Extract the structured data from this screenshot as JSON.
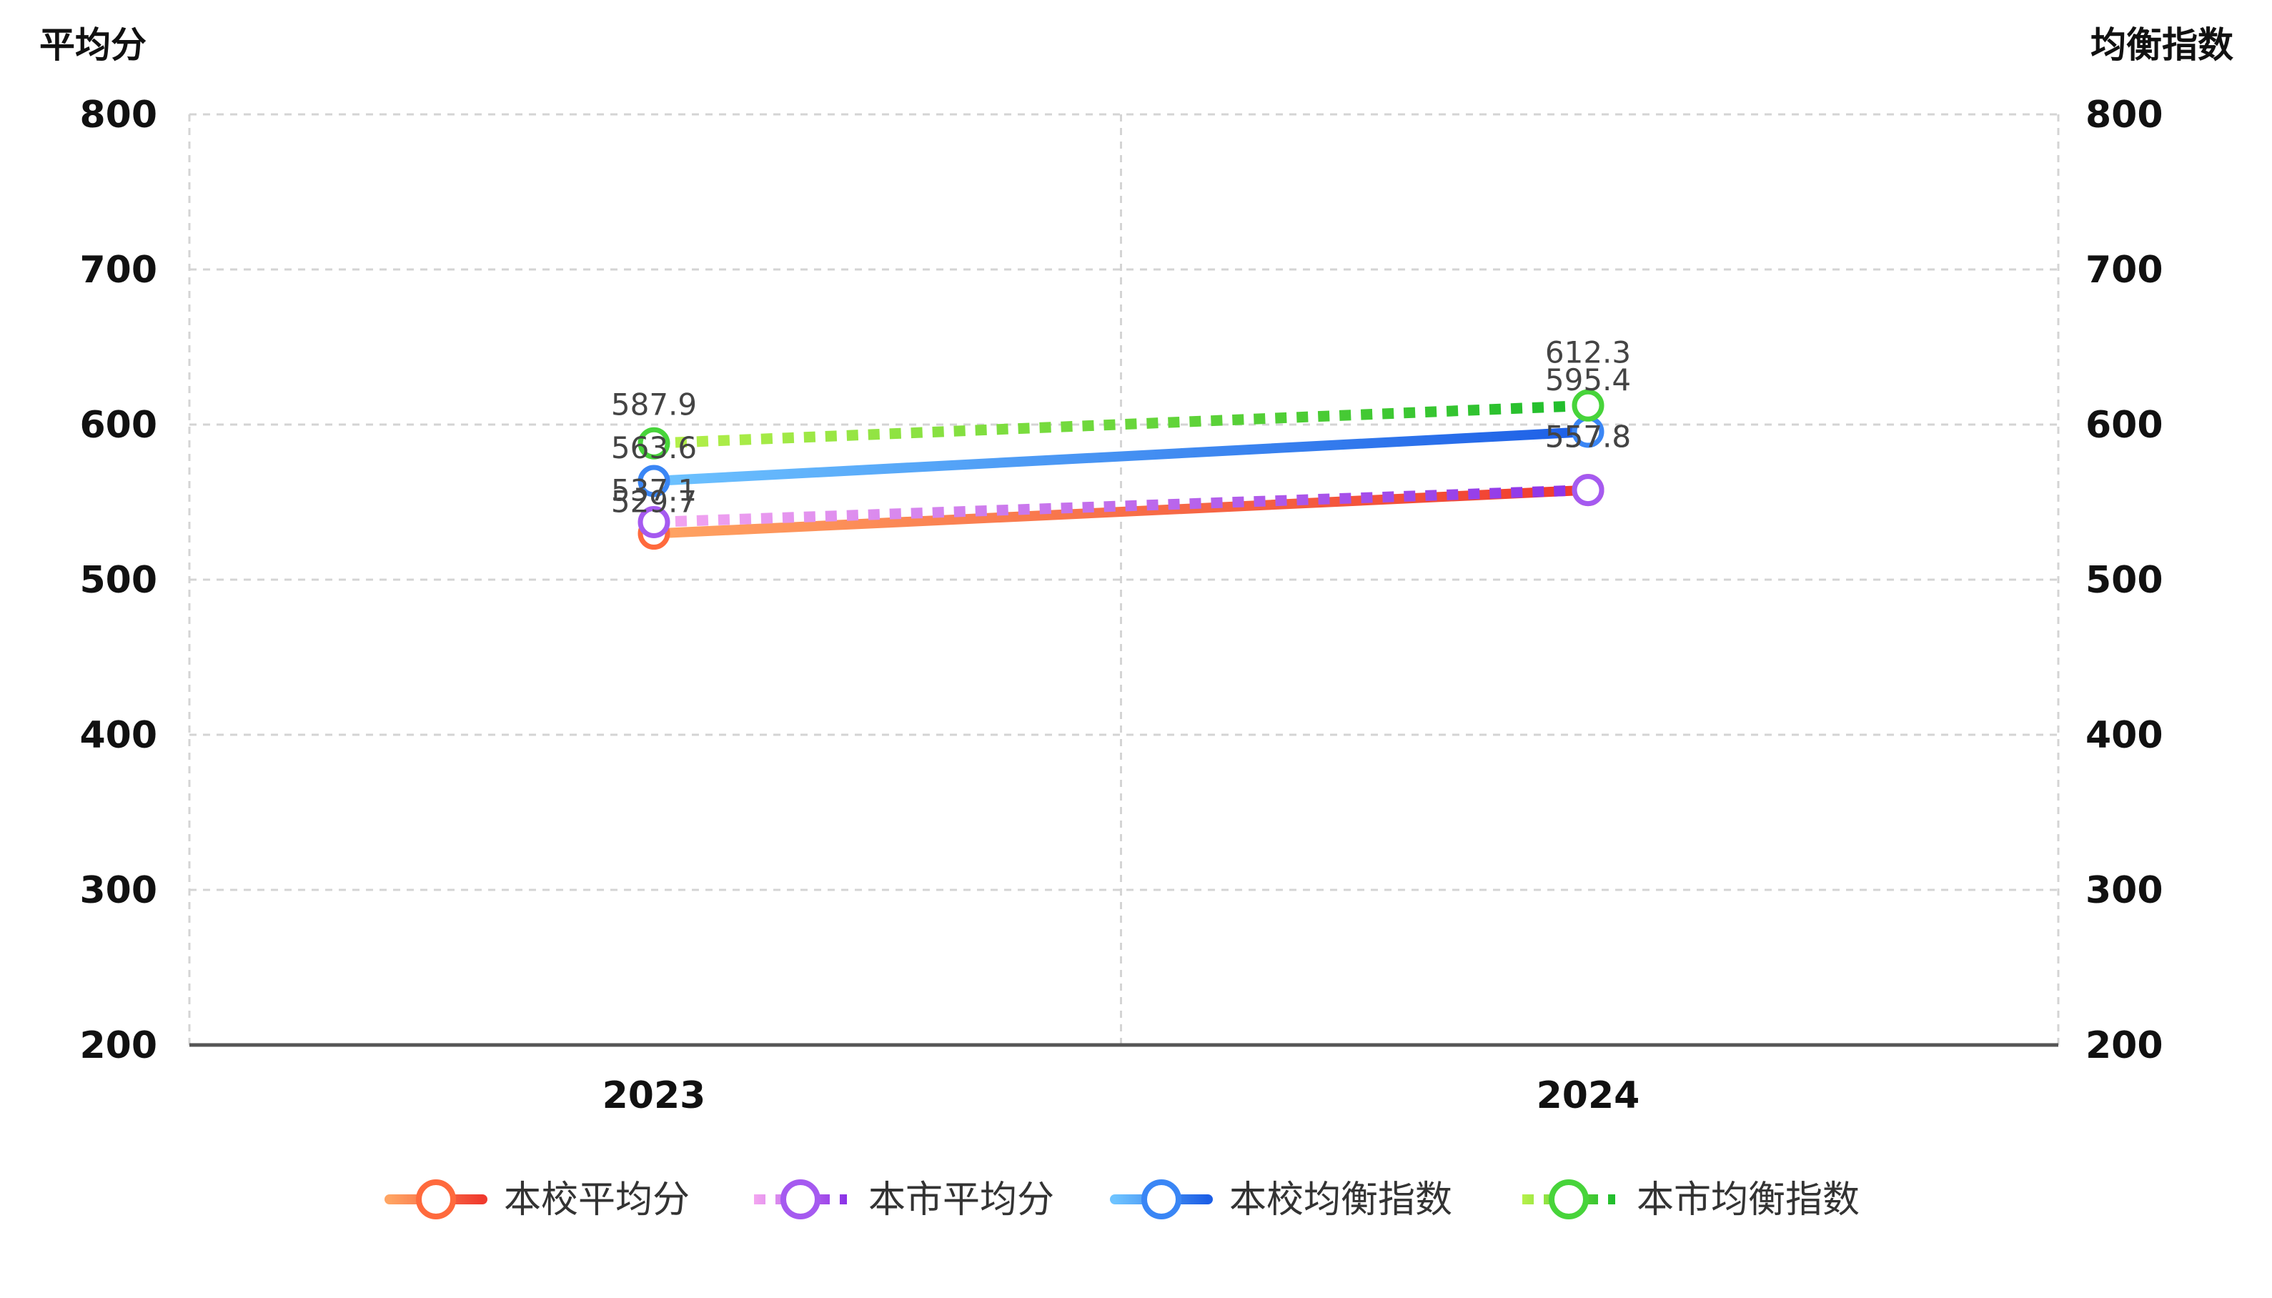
{
  "chart_data": {
    "type": "line",
    "categories": [
      "2023",
      "2024"
    ],
    "y_left": {
      "title": "平均分",
      "ylim": [
        200,
        800
      ],
      "ticks": [
        200,
        300,
        400,
        500,
        600,
        700,
        800
      ]
    },
    "y_right": {
      "title": "均衡指数",
      "ylim": [
        200,
        800
      ],
      "ticks": [
        200,
        300,
        400,
        500,
        600,
        700,
        800
      ]
    },
    "grid": true,
    "legend_position": "bottom",
    "series": [
      {
        "name": "本校平均分",
        "values": [
          529.7,
          557.8
        ],
        "labels": [
          "529.7",
          "557.8"
        ],
        "style": "solid",
        "color_start": "#ffa463",
        "color_end": "#f03a2e",
        "marker_color": "#ff6a3d",
        "axis": "left"
      },
      {
        "name": "本市平均分",
        "values": [
          537.1,
          557.8
        ],
        "labels": [
          "537.1",
          "557.8"
        ],
        "style": "dotted",
        "color_start": "#f4a6f0",
        "color_end": "#8a32e8",
        "marker_color": "#a55af0",
        "axis": "left"
      },
      {
        "name": "本校均衡指数",
        "values": [
          563.6,
          595.4
        ],
        "labels": [
          "563.6",
          "595.4"
        ],
        "style": "solid",
        "color_start": "#6ec3ff",
        "color_end": "#1d5fe6",
        "marker_color": "#3a86f5",
        "axis": "right"
      },
      {
        "name": "本市均衡指数",
        "values": [
          587.9,
          612.3
        ],
        "labels": [
          "587.9",
          "612.3"
        ],
        "style": "dotted",
        "color_start": "#b6f04a",
        "color_end": "#1ebd2c",
        "marker_color": "#47d43a",
        "axis": "right"
      }
    ]
  }
}
